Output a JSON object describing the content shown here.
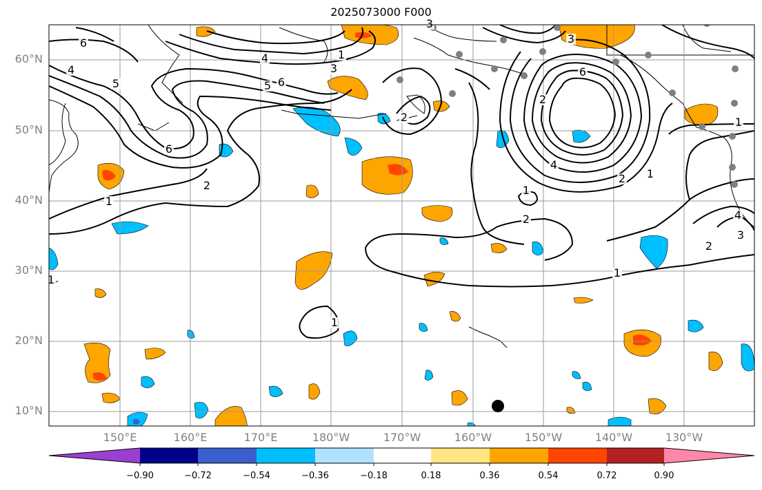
{
  "title": "2025073000 F000",
  "lat_labels": [
    "60°N",
    "50°N",
    "40°N",
    "30°N",
    "20°N",
    "10°N"
  ],
  "lon_labels": [
    "150°E",
    "160°E",
    "170°E",
    "180°W",
    "170°W",
    "160°W",
    "150°W",
    "140°W",
    "130°W"
  ],
  "colorbar": {
    "ticks": [
      "−0.90",
      "−0.72",
      "−0.54",
      "−0.36",
      "−0.18",
      "0.18",
      "0.36",
      "0.54",
      "0.72",
      "0.90"
    ],
    "colors": [
      "#9b3fd1",
      "#00008b",
      "#3a5fcd",
      "#00bfff",
      "#b0e2ff",
      "#ffffff",
      "#ffe680",
      "#ffa500",
      "#ff4500",
      "#b22222",
      "#ff88aa"
    ]
  },
  "contour_labels": [
    "6",
    "4",
    "5",
    "6",
    "1",
    "2",
    "4",
    "3",
    "5",
    "6",
    "1",
    "3",
    "2",
    "6",
    "4",
    "2",
    "1",
    "2",
    "1",
    "2",
    "1",
    "1",
    "1",
    "2",
    "3",
    "4",
    "1",
    "3"
  ],
  "shading_colors": {
    "orange": "#ffa500",
    "red": "#ff4500",
    "cyan": "#00bfff",
    "pale_yellow": "#ffe680"
  }
}
